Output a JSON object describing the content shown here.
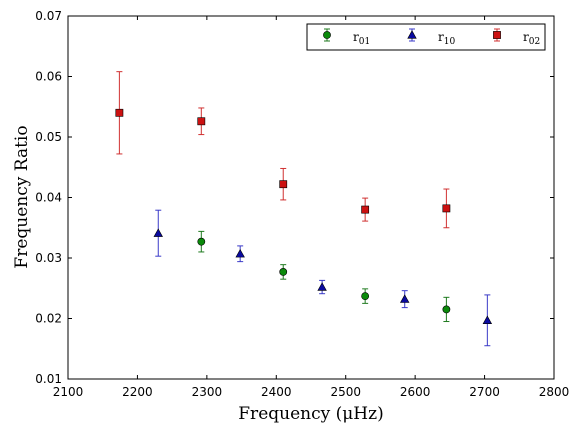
{
  "chart_data": {
    "type": "scatter",
    "xlabel": "Frequency  (μHz)",
    "ylabel": "Frequency Ratio",
    "xlim": [
      2100,
      2800
    ],
    "ylim": [
      0.01,
      0.07
    ],
    "xticks": [
      2100,
      2200,
      2300,
      2400,
      2500,
      2600,
      2700,
      2800
    ],
    "yticks": [
      0.01,
      0.02,
      0.03,
      0.04,
      0.05,
      0.06,
      0.07
    ],
    "xtick_labels": [
      "2100",
      "2200",
      "2300",
      "2400",
      "2500",
      "2600",
      "2700",
      "2800"
    ],
    "ytick_labels": [
      "0.01",
      "0.02",
      "0.03",
      "0.04",
      "0.05",
      "0.06",
      "0.07"
    ],
    "grid": false,
    "legend_position": "top-right",
    "series": [
      {
        "name": "r01",
        "legend_base": "r",
        "legend_sub": "01",
        "marker": "circle",
        "color": "#1f7a1f",
        "fill": "#0a8a0a",
        "points": [
          {
            "x": 2292,
            "y": 0.0327,
            "err": 0.0017
          },
          {
            "x": 2410,
            "y": 0.0277,
            "err": 0.0012
          },
          {
            "x": 2528,
            "y": 0.0237,
            "err": 0.0012
          },
          {
            "x": 2645,
            "y": 0.0215,
            "err": 0.002
          }
        ]
      },
      {
        "name": "r10",
        "legend_base": "r",
        "legend_sub": "10",
        "marker": "triangle",
        "color": "#3a3ac8",
        "fill": "#0a0aa0",
        "points": [
          {
            "x": 2230,
            "y": 0.0341,
            "err": 0.0038
          },
          {
            "x": 2348,
            "y": 0.0307,
            "err": 0.0013
          },
          {
            "x": 2466,
            "y": 0.0252,
            "err": 0.0011
          },
          {
            "x": 2585,
            "y": 0.0232,
            "err": 0.0014
          },
          {
            "x": 2704,
            "y": 0.0197,
            "err": 0.0042
          }
        ]
      },
      {
        "name": "r02",
        "legend_base": "r",
        "legend_sub": "02",
        "marker": "square",
        "color": "#d03030",
        "fill": "#cc1111",
        "points": [
          {
            "x": 2174,
            "y": 0.054,
            "err": 0.0068
          },
          {
            "x": 2292,
            "y": 0.0526,
            "err": 0.0022
          },
          {
            "x": 2410,
            "y": 0.0422,
            "err": 0.0026
          },
          {
            "x": 2528,
            "y": 0.038,
            "err": 0.0019
          },
          {
            "x": 2645,
            "y": 0.0382,
            "err": 0.0032
          }
        ]
      }
    ]
  }
}
